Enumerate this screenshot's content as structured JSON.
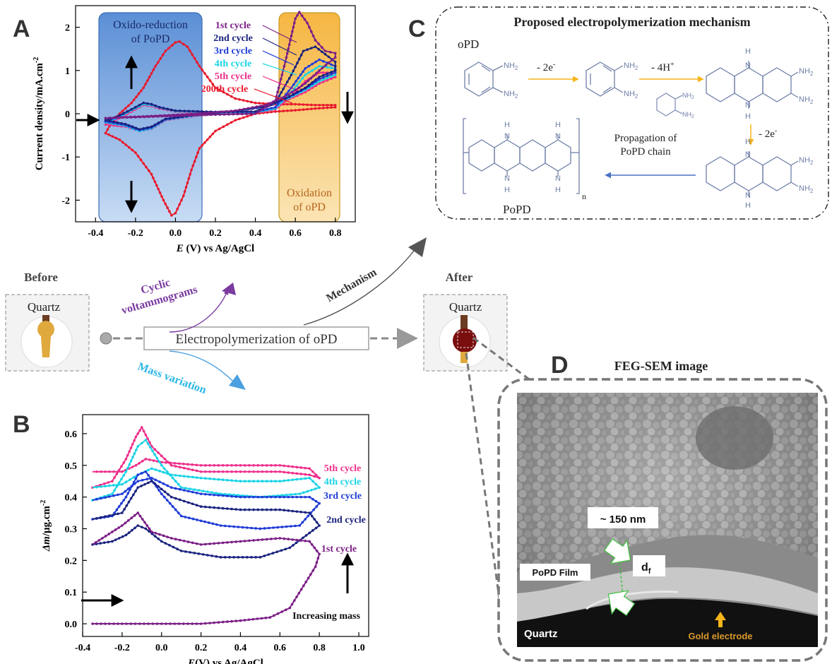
{
  "panels": {
    "A": {
      "letter": "A",
      "region_reduction": "Oxido-reduction\nof PoPD",
      "region_oxidation": "Oxidation\nof oPD",
      "legend": [
        {
          "label": "1st cycle",
          "color": "#7b1e86"
        },
        {
          "label": "2nd cycle",
          "color": "#1a237e"
        },
        {
          "label": "3rd cycle",
          "color": "#1f3bd6"
        },
        {
          "label": "4th cycle",
          "color": "#19d3e6"
        },
        {
          "label": "5th cycle",
          "color": "#ee2e8a"
        },
        {
          "label": "200th cycle",
          "color": "#e8192c"
        }
      ]
    },
    "B": {
      "letter": "B",
      "legend": [
        {
          "label": "5th cycle",
          "color": "#ee2e8a"
        },
        {
          "label": "4th cycle",
          "color": "#19d3e6"
        },
        {
          "label": "3rd cycle",
          "color": "#1f3bd6"
        },
        {
          "label": "2nd cycle",
          "color": "#1a237e"
        },
        {
          "label": "1st cycle",
          "color": "#7b1e86"
        }
      ],
      "annotation": "Increasing mass"
    },
    "C": {
      "letter": "C",
      "title": "Proposed electropolymerization mechanism",
      "monomer": "oPD",
      "polymer": "PoPD",
      "step1": "- 2e",
      "step2": "- 4H",
      "step3": "- 2e",
      "propagation": "Propagation of\nPoPD chain",
      "nh2": "NH",
      "nh": "N",
      "h": "H",
      "sub_n": "n"
    },
    "D": {
      "letter": "D",
      "title": "FEG-SEM image",
      "thickness": "~ 150 nm",
      "df": "d",
      "df_sub": "f",
      "film": "PoPD Film",
      "substrate": "Quartz",
      "electrode": "Gold electrode"
    },
    "middle": {
      "before": "Before",
      "after": "After",
      "quartz_before": "Quartz",
      "quartz_after": "Quartz",
      "process": "Electropolymerization of oPD",
      "arrow_cv": "Cyclic\nvoltammograms",
      "arrow_mass": "Mass variation",
      "arrow_mech": "Mechanism"
    }
  },
  "chart_data": [
    {
      "type": "line",
      "panel": "A",
      "xlabel_italic": "E",
      "xlabel": " (V) vs Ag/AgCl",
      "ylabel": "Current density/mA.cm",
      "ylabel_sup": "-2",
      "xlim": [
        -0.5,
        0.9
      ],
      "ylim": [
        -2.5,
        2.5
      ],
      "xticks": [
        -0.4,
        -0.2,
        0.0,
        0.2,
        0.4,
        0.6,
        0.8
      ],
      "yticks": [
        -2,
        -1,
        0,
        1,
        2
      ],
      "series": [
        {
          "name": "200th cycle",
          "color": "#e8192c",
          "x": [
            -0.35,
            -0.32,
            -0.28,
            -0.22,
            -0.16,
            -0.1,
            -0.05,
            0.0,
            0.02,
            0.06,
            0.12,
            0.2,
            0.3,
            0.4,
            0.5,
            0.6,
            0.7,
            0.8,
            0.8,
            0.7,
            0.6,
            0.5,
            0.4,
            0.3,
            0.2,
            0.12,
            0.08,
            0.04,
            0.0,
            -0.02,
            -0.06,
            -0.12,
            -0.2,
            -0.28,
            -0.35
          ],
          "y": [
            -0.45,
            -0.2,
            0.0,
            0.25,
            0.6,
            1.1,
            1.45,
            1.65,
            1.67,
            1.55,
            1.1,
            0.6,
            0.35,
            0.25,
            0.22,
            0.22,
            0.2,
            0.2,
            0.15,
            0.12,
            0.08,
            0.05,
            0.0,
            -0.15,
            -0.4,
            -0.8,
            -1.3,
            -1.9,
            -2.3,
            -2.35,
            -2.0,
            -1.4,
            -0.9,
            -0.6,
            -0.45
          ]
        },
        {
          "name": "5th cycle",
          "color": "#ee2e8a",
          "x": [
            -0.35,
            -0.3,
            -0.22,
            -0.16,
            -0.12,
            -0.08,
            0.0,
            0.2,
            0.4,
            0.5,
            0.58,
            0.65,
            0.72,
            0.8,
            0.8,
            0.72,
            0.65,
            0.55,
            0.45,
            0.3,
            0.1,
            -0.05,
            -0.12,
            -0.18,
            -0.25,
            -0.35
          ],
          "y": [
            -0.25,
            -0.15,
            0.05,
            0.2,
            0.18,
            0.12,
            0.05,
            0.02,
            0.02,
            0.1,
            0.4,
            0.75,
            0.95,
            0.95,
            0.85,
            0.7,
            0.5,
            0.3,
            0.15,
            0.05,
            -0.05,
            -0.15,
            -0.35,
            -0.4,
            -0.3,
            -0.25
          ]
        },
        {
          "name": "4th cycle",
          "color": "#19d3e6",
          "x": [
            -0.35,
            -0.3,
            -0.22,
            -0.16,
            -0.12,
            -0.08,
            0.0,
            0.2,
            0.4,
            0.5,
            0.58,
            0.65,
            0.72,
            0.8,
            0.8,
            0.72,
            0.65,
            0.55,
            0.45,
            0.3,
            0.1,
            -0.05,
            -0.12,
            -0.18,
            -0.25,
            -0.35
          ],
          "y": [
            -0.2,
            -0.12,
            0.08,
            0.22,
            0.2,
            0.14,
            0.06,
            0.03,
            0.03,
            0.12,
            0.5,
            0.9,
            1.1,
            1.05,
            0.9,
            0.75,
            0.55,
            0.32,
            0.16,
            0.06,
            -0.04,
            -0.14,
            -0.34,
            -0.4,
            -0.28,
            -0.2
          ]
        },
        {
          "name": "3rd cycle",
          "color": "#1f3bd6",
          "x": [
            -0.35,
            -0.3,
            -0.22,
            -0.16,
            -0.12,
            -0.08,
            0.0,
            0.2,
            0.4,
            0.5,
            0.58,
            0.65,
            0.72,
            0.8,
            0.8,
            0.72,
            0.65,
            0.55,
            0.45,
            0.3,
            0.1,
            -0.05,
            -0.12,
            -0.18,
            -0.25,
            -0.35
          ],
          "y": [
            -0.18,
            -0.1,
            0.1,
            0.25,
            0.22,
            0.15,
            0.07,
            0.04,
            0.04,
            0.15,
            0.6,
            1.05,
            1.25,
            1.1,
            0.95,
            0.8,
            0.58,
            0.34,
            0.17,
            0.07,
            -0.03,
            -0.13,
            -0.32,
            -0.38,
            -0.26,
            -0.18
          ]
        },
        {
          "name": "2nd cycle",
          "color": "#1a237e",
          "x": [
            -0.35,
            -0.3,
            -0.22,
            -0.16,
            -0.12,
            -0.08,
            0.0,
            0.2,
            0.4,
            0.5,
            0.58,
            0.64,
            0.7,
            0.8,
            0.8,
            0.72,
            0.65,
            0.55,
            0.45,
            0.3,
            0.1,
            -0.05,
            -0.12,
            -0.18,
            -0.25,
            -0.35
          ],
          "y": [
            -0.15,
            -0.08,
            0.1,
            0.25,
            0.22,
            0.15,
            0.07,
            0.04,
            0.05,
            0.25,
            0.9,
            1.45,
            1.55,
            1.2,
            1.0,
            0.85,
            0.6,
            0.35,
            0.18,
            0.07,
            -0.02,
            -0.12,
            -0.3,
            -0.36,
            -0.24,
            -0.15
          ]
        },
        {
          "name": "1st cycle",
          "color": "#7b1e86",
          "x": [
            -0.35,
            -0.2,
            0.0,
            0.2,
            0.4,
            0.5,
            0.55,
            0.6,
            0.62,
            0.66,
            0.7,
            0.75,
            0.8,
            0.8,
            0.72,
            0.65,
            0.55,
            0.45,
            0.3,
            0.1,
            -0.1,
            -0.35
          ],
          "y": [
            -0.1,
            -0.08,
            -0.05,
            -0.02,
            0.0,
            0.3,
            1.2,
            2.2,
            2.35,
            2.1,
            1.7,
            1.45,
            1.4,
            1.3,
            1.0,
            0.7,
            0.4,
            0.2,
            0.07,
            0.0,
            -0.05,
            -0.1
          ]
        }
      ]
    },
    {
      "type": "line",
      "panel": "B",
      "xlabel_italic": "E",
      "xlabel": "(V) vs Ag/AgCl",
      "ylabel_italic": "Δm",
      "ylabel": "/μg.cm",
      "ylabel_sup": "-2",
      "xlim": [
        -0.4,
        1.05
      ],
      "ylim": [
        -0.04,
        0.66
      ],
      "xticks": [
        -0.4,
        -0.2,
        0.0,
        0.2,
        0.4,
        0.6,
        0.8,
        1.0
      ],
      "yticks": [
        0.0,
        0.1,
        0.2,
        0.3,
        0.4,
        0.5,
        0.6
      ],
      "series": [
        {
          "name": "5th cycle",
          "color": "#ee2e8a",
          "x": [
            -0.35,
            -0.25,
            -0.18,
            -0.13,
            -0.1,
            -0.05,
            0.05,
            0.2,
            0.4,
            0.6,
            0.75,
            0.8,
            0.75,
            0.6,
            0.4,
            0.2,
            0.0,
            -0.08,
            -0.13,
            -0.2,
            -0.35
          ],
          "y": [
            0.43,
            0.45,
            0.52,
            0.59,
            0.62,
            0.56,
            0.5,
            0.48,
            0.48,
            0.48,
            0.47,
            0.46,
            0.49,
            0.5,
            0.5,
            0.5,
            0.51,
            0.52,
            0.5,
            0.48,
            0.48
          ]
        },
        {
          "name": "4th cycle",
          "color": "#19d3e6",
          "x": [
            -0.35,
            -0.25,
            -0.18,
            -0.12,
            -0.08,
            0.0,
            0.1,
            0.3,
            0.5,
            0.7,
            0.8,
            0.75,
            0.6,
            0.4,
            0.2,
            0.05,
            -0.05,
            -0.12,
            -0.2,
            -0.35
          ],
          "y": [
            0.39,
            0.41,
            0.48,
            0.56,
            0.58,
            0.5,
            0.43,
            0.41,
            0.4,
            0.41,
            0.43,
            0.46,
            0.45,
            0.45,
            0.46,
            0.47,
            0.49,
            0.47,
            0.44,
            0.43
          ]
        },
        {
          "name": "3rd cycle",
          "color": "#1f3bd6",
          "x": [
            -0.35,
            -0.25,
            -0.18,
            -0.12,
            -0.08,
            0.0,
            0.1,
            0.3,
            0.5,
            0.7,
            0.8,
            0.75,
            0.6,
            0.4,
            0.2,
            0.05,
            -0.05,
            -0.12,
            -0.2,
            -0.35
          ],
          "y": [
            0.33,
            0.34,
            0.4,
            0.47,
            0.48,
            0.41,
            0.34,
            0.31,
            0.3,
            0.31,
            0.38,
            0.4,
            0.4,
            0.4,
            0.41,
            0.43,
            0.46,
            0.45,
            0.41,
            0.39
          ]
        },
        {
          "name": "2nd cycle",
          "color": "#1a237e",
          "x": [
            -0.35,
            -0.25,
            -0.18,
            -0.12,
            -0.08,
            0.0,
            0.1,
            0.3,
            0.5,
            0.65,
            0.8,
            0.75,
            0.6,
            0.4,
            0.2,
            0.05,
            -0.05,
            -0.12,
            -0.2,
            -0.35
          ],
          "y": [
            0.25,
            0.26,
            0.28,
            0.31,
            0.3,
            0.26,
            0.23,
            0.21,
            0.21,
            0.24,
            0.31,
            0.35,
            0.36,
            0.36,
            0.37,
            0.4,
            0.45,
            0.43,
            0.35,
            0.33
          ]
        },
        {
          "name": "1st cycle",
          "color": "#7b1e86",
          "x": [
            -0.35,
            -0.2,
            0.0,
            0.2,
            0.4,
            0.55,
            0.65,
            0.72,
            0.78,
            0.8,
            0.75,
            0.6,
            0.4,
            0.2,
            0.05,
            -0.05,
            -0.12,
            -0.2,
            -0.3,
            -0.35
          ],
          "y": [
            0.0,
            0.0,
            0.0,
            0.0,
            0.01,
            0.02,
            0.05,
            0.12,
            0.18,
            0.22,
            0.26,
            0.27,
            0.26,
            0.25,
            0.27,
            0.29,
            0.35,
            0.31,
            0.27,
            0.25
          ]
        }
      ]
    }
  ]
}
